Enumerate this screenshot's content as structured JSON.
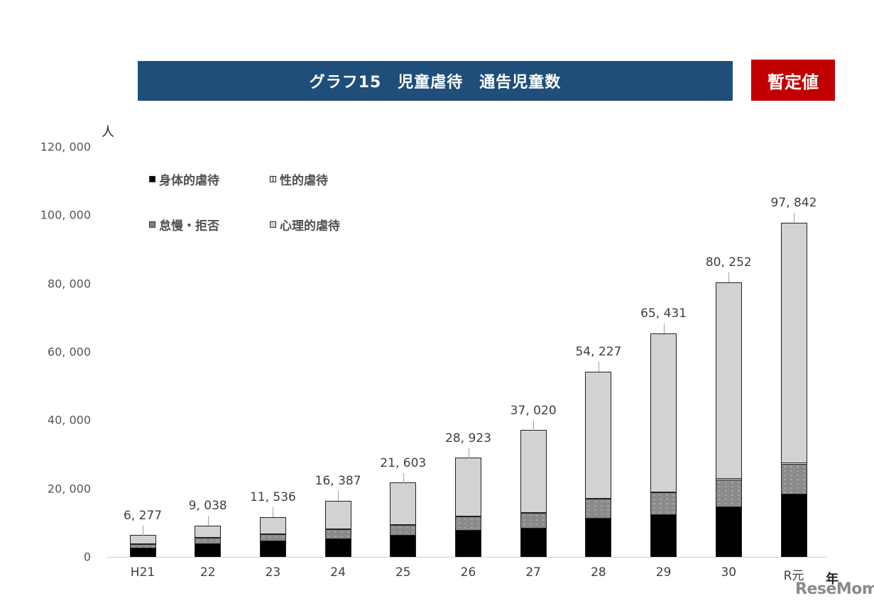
{
  "header": {
    "title": "グラフ15　児童虐待　通告児童数",
    "badge": "暫定値"
  },
  "axis": {
    "unit": "人",
    "x_unit": "年",
    "y_ticks": [
      "120, 000",
      "100, 000",
      "80, 000",
      "60, 000",
      "40, 000",
      "20, 000",
      "0"
    ]
  },
  "legend": {
    "physical": "身体的虐待",
    "sexual": "性的虐待",
    "neglect": "怠慢・拒否",
    "psychological": "心理的虐待"
  },
  "watermark": "ReseMom",
  "colors": {
    "title_bg": "#1f4e79",
    "badge_bg": "#c00000",
    "physical": "#000000",
    "neglect": "#8a8a8a",
    "psychological": "#e9e9e9"
  },
  "chart_data": {
    "type": "bar",
    "stacked": true,
    "title": "グラフ15　児童虐待　通告児童数",
    "subtitle": "暫定値",
    "xlabel": "年",
    "ylabel": "人",
    "ylim": [
      0,
      120000
    ],
    "y_ticks": [
      0,
      20000,
      40000,
      60000,
      80000,
      100000,
      120000
    ],
    "grid": false,
    "legend_position": "upper-left",
    "categories": [
      "H21",
      "22",
      "23",
      "24",
      "25",
      "26",
      "27",
      "28",
      "29",
      "30",
      "R元"
    ],
    "totals": [
      6277,
      9038,
      11536,
      16387,
      21603,
      28923,
      37020,
      54227,
      65431,
      80252,
      97842
    ],
    "total_labels": [
      "6, 277",
      "9, 038",
      "11, 536",
      "16, 387",
      "21, 603",
      "28, 923",
      "37, 020",
      "54, 227",
      "65, 431",
      "80, 252",
      "97, 842"
    ],
    "series": [
      {
        "name": "身体的虐待",
        "values": [
          2700,
          3900,
          4800,
          5400,
          6400,
          7900,
          8500,
          11400,
          12500,
          14800,
          18500
        ]
      },
      {
        "name": "怠慢・拒否",
        "values": [
          1000,
          1700,
          1800,
          2700,
          2900,
          3900,
          4400,
          5600,
          6400,
          7900,
          8800
        ]
      },
      {
        "name": "性的虐待",
        "values": [
          50,
          60,
          80,
          90,
          100,
          130,
          150,
          200,
          250,
          250,
          270
        ]
      },
      {
        "name": "心理的虐待",
        "values": [
          2527,
          3378,
          4856,
          8197,
          12203,
          16993,
          23970,
          37027,
          46281,
          57302,
          70272
        ]
      }
    ]
  }
}
